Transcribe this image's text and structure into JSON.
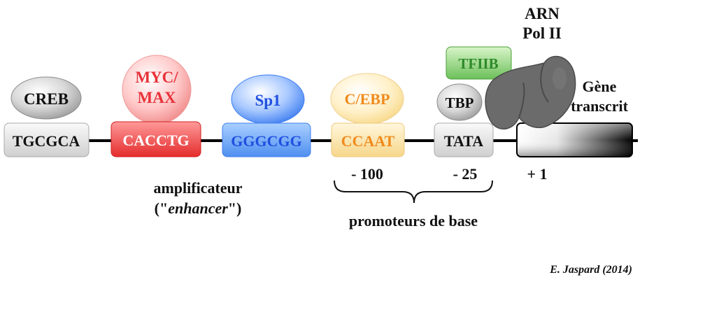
{
  "factors": {
    "creb": "CREB",
    "myc_line1": "MYC/",
    "myc_line2": "MAX",
    "sp1": "Sp1",
    "cebp": "C/EBP",
    "tbp": "TBP",
    "tfiib": "TFIIB"
  },
  "elements": {
    "tgcgca": "TGCGCA",
    "cacctg": "CACCTG",
    "gggcgg": "GGGCGG",
    "ccaat": "CCAAT",
    "tata": "TATA"
  },
  "polymerase": {
    "line1": "ARN",
    "line2": "Pol II"
  },
  "gene": {
    "line1": "Gène",
    "line2": "transcrit"
  },
  "positions": {
    "p100": "- 100",
    "p25": "- 25",
    "p1": "+ 1"
  },
  "labels": {
    "enhancer_line1": "amplificateur",
    "enhancer_open": "(\"",
    "enhancer_italic": "enhancer",
    "enhancer_close": "\")",
    "promoter": "promoteurs de base",
    "credit": "E. Jaspard (2014)"
  },
  "colors": {
    "creb": "#9a9a9a",
    "myc": "#e8323a",
    "sp1": "#1f4fe0",
    "cebp": "#f08a1c",
    "tbp": "#8a8a8a",
    "tfiib": "#2f8a2a",
    "polymerase": "#6a6a6a"
  }
}
